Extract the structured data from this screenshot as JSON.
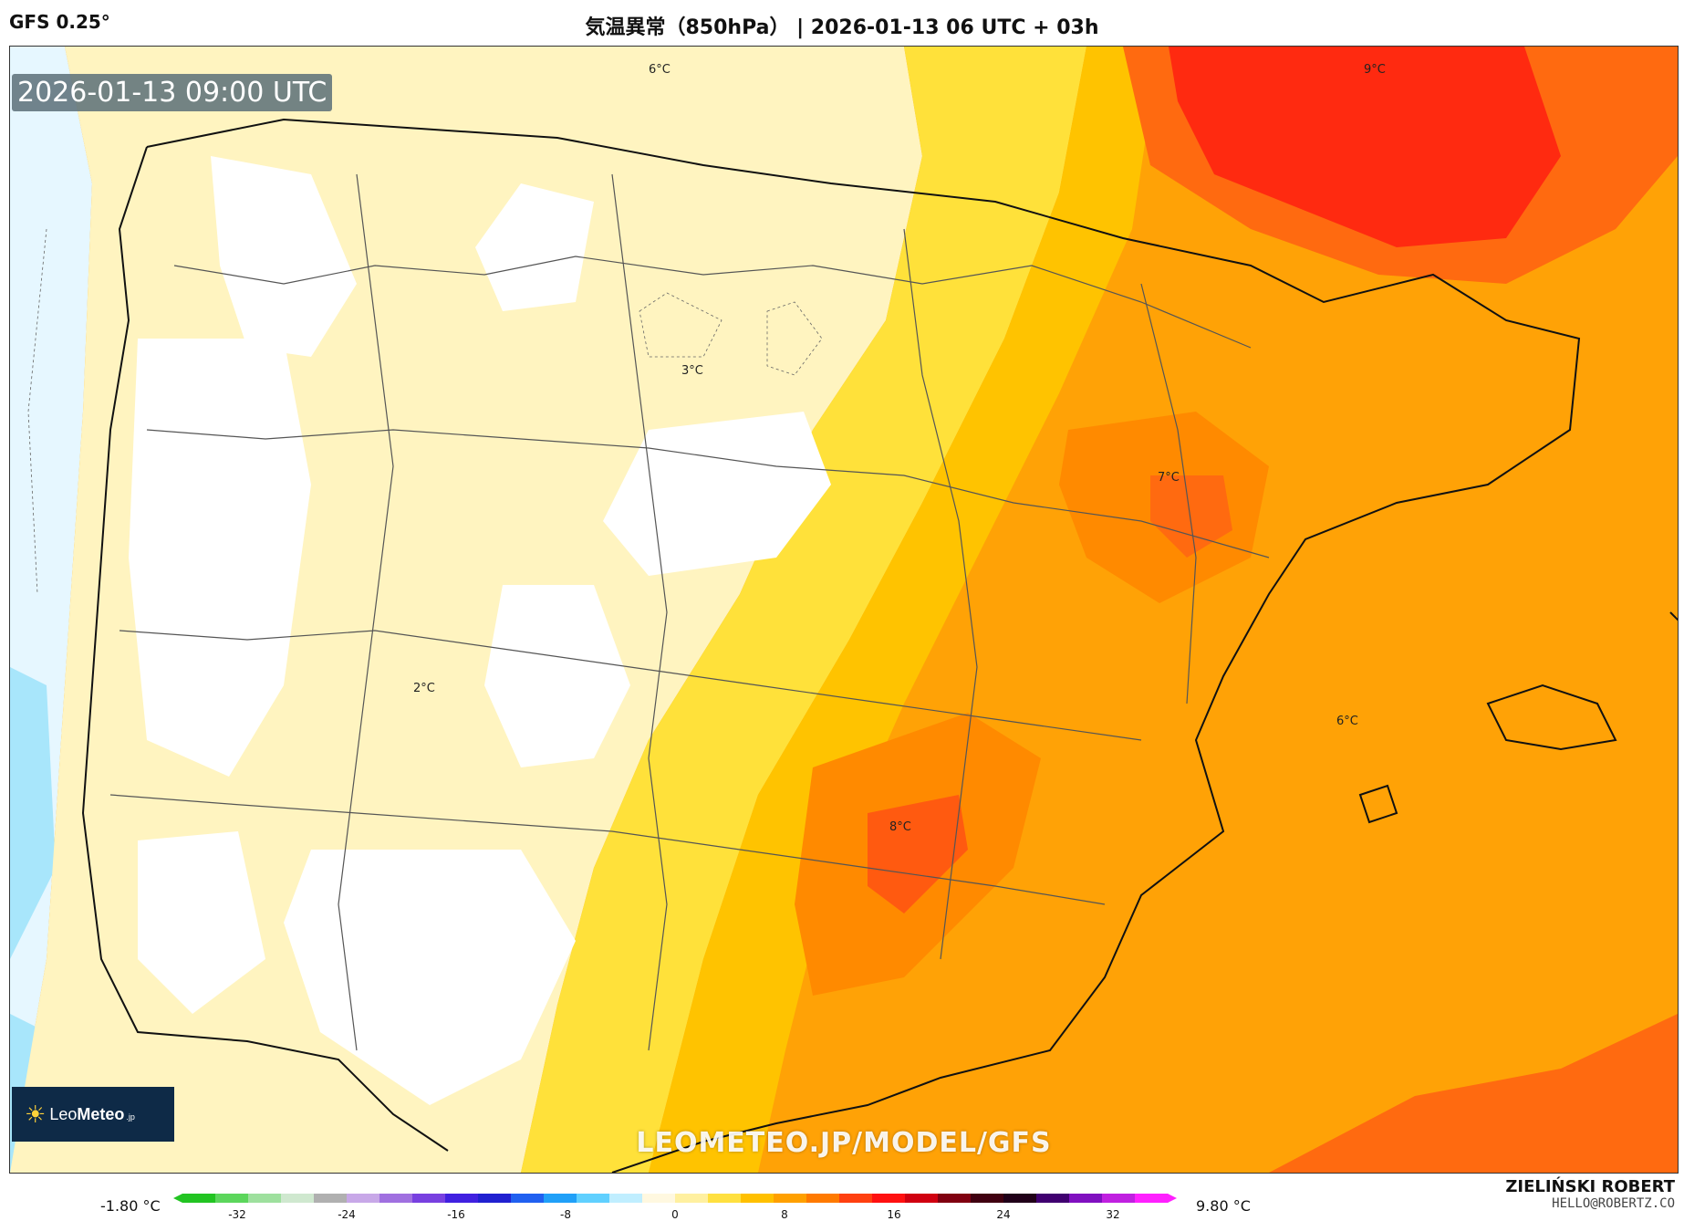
{
  "header": {
    "model": "GFS 0.25°",
    "title": "気温異常（850hPa） | 2026-01-13 06 UTC + 03h"
  },
  "map": {
    "timestamp": "2026-01-13 09:00 UTC",
    "labels": [
      {
        "id": "north-6",
        "text": "6°C"
      },
      {
        "id": "northeast-9",
        "text": "9°C"
      },
      {
        "id": "north-central-3",
        "text": "3°C"
      },
      {
        "id": "east-7",
        "text": "7°C"
      },
      {
        "id": "center-2",
        "text": "2°C"
      },
      {
        "id": "southeast-8",
        "text": "8°C"
      },
      {
        "id": "sea-6",
        "text": "6°C"
      }
    ],
    "watermark": "LEOMETEO.JP/MODEL/GFS",
    "logo": {
      "brand_prefix": "Leo",
      "brand_suffix": "Meteo",
      "suffix_small": ".jp"
    }
  },
  "colorbar": {
    "min_label": "-1.80 °C",
    "max_label": "9.80 °C",
    "ticks": [
      "-32",
      "-24",
      "-16",
      "-8",
      "0",
      "8",
      "16",
      "24",
      "32"
    ],
    "colors": [
      "#22c422",
      "#5cd65c",
      "#9ee09e",
      "#cfe8cf",
      "#b0b0b0",
      "#c8a8e8",
      "#a070e0",
      "#7840e0",
      "#4020e0",
      "#2020d0",
      "#2060f0",
      "#20a0f8",
      "#60d0ff",
      "#c0eeff",
      "#fff8e0",
      "#fff0a0",
      "#ffe040",
      "#ffc000",
      "#ffa000",
      "#ff7a00",
      "#ff4010",
      "#ff1010",
      "#d00010",
      "#800010",
      "#400010",
      "#200018",
      "#400070",
      "#8010c0",
      "#c020e0",
      "#ff20ff"
    ]
  },
  "author": {
    "name": "ZIELIŃSKI ROBERT",
    "email": "HELLO@ROBERTZ.CO"
  }
}
